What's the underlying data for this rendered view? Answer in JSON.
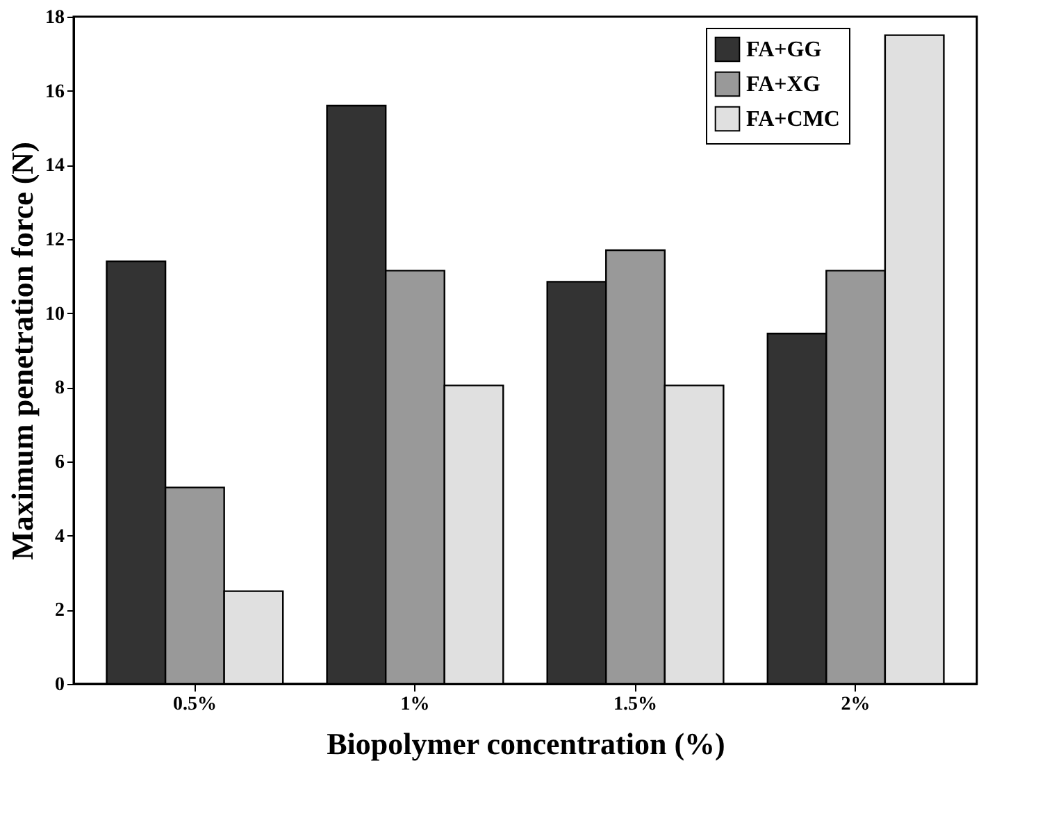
{
  "chart_data": {
    "type": "bar",
    "xlabel": "Biopolymer concentration (%)",
    "ylabel": "Maximum penetration force (N)",
    "categories": [
      "0.5%",
      "1%",
      "1.5%",
      "2%"
    ],
    "series": [
      {
        "name": "FA+GG",
        "color": "#333333",
        "values": [
          11.4,
          15.6,
          10.85,
          9.45
        ]
      },
      {
        "name": "FA+XG",
        "color": "#999999",
        "values": [
          5.3,
          11.15,
          11.7,
          11.15
        ]
      },
      {
        "name": "FA+CMC",
        "color": "#e0e0e0",
        "values": [
          2.5,
          8.05,
          8.05,
          17.5
        ]
      }
    ],
    "ylim": [
      0,
      18
    ],
    "yticks": [
      0,
      2,
      4,
      6,
      8,
      10,
      12,
      14,
      16,
      18
    ],
    "grid": false,
    "legend": "top right"
  }
}
